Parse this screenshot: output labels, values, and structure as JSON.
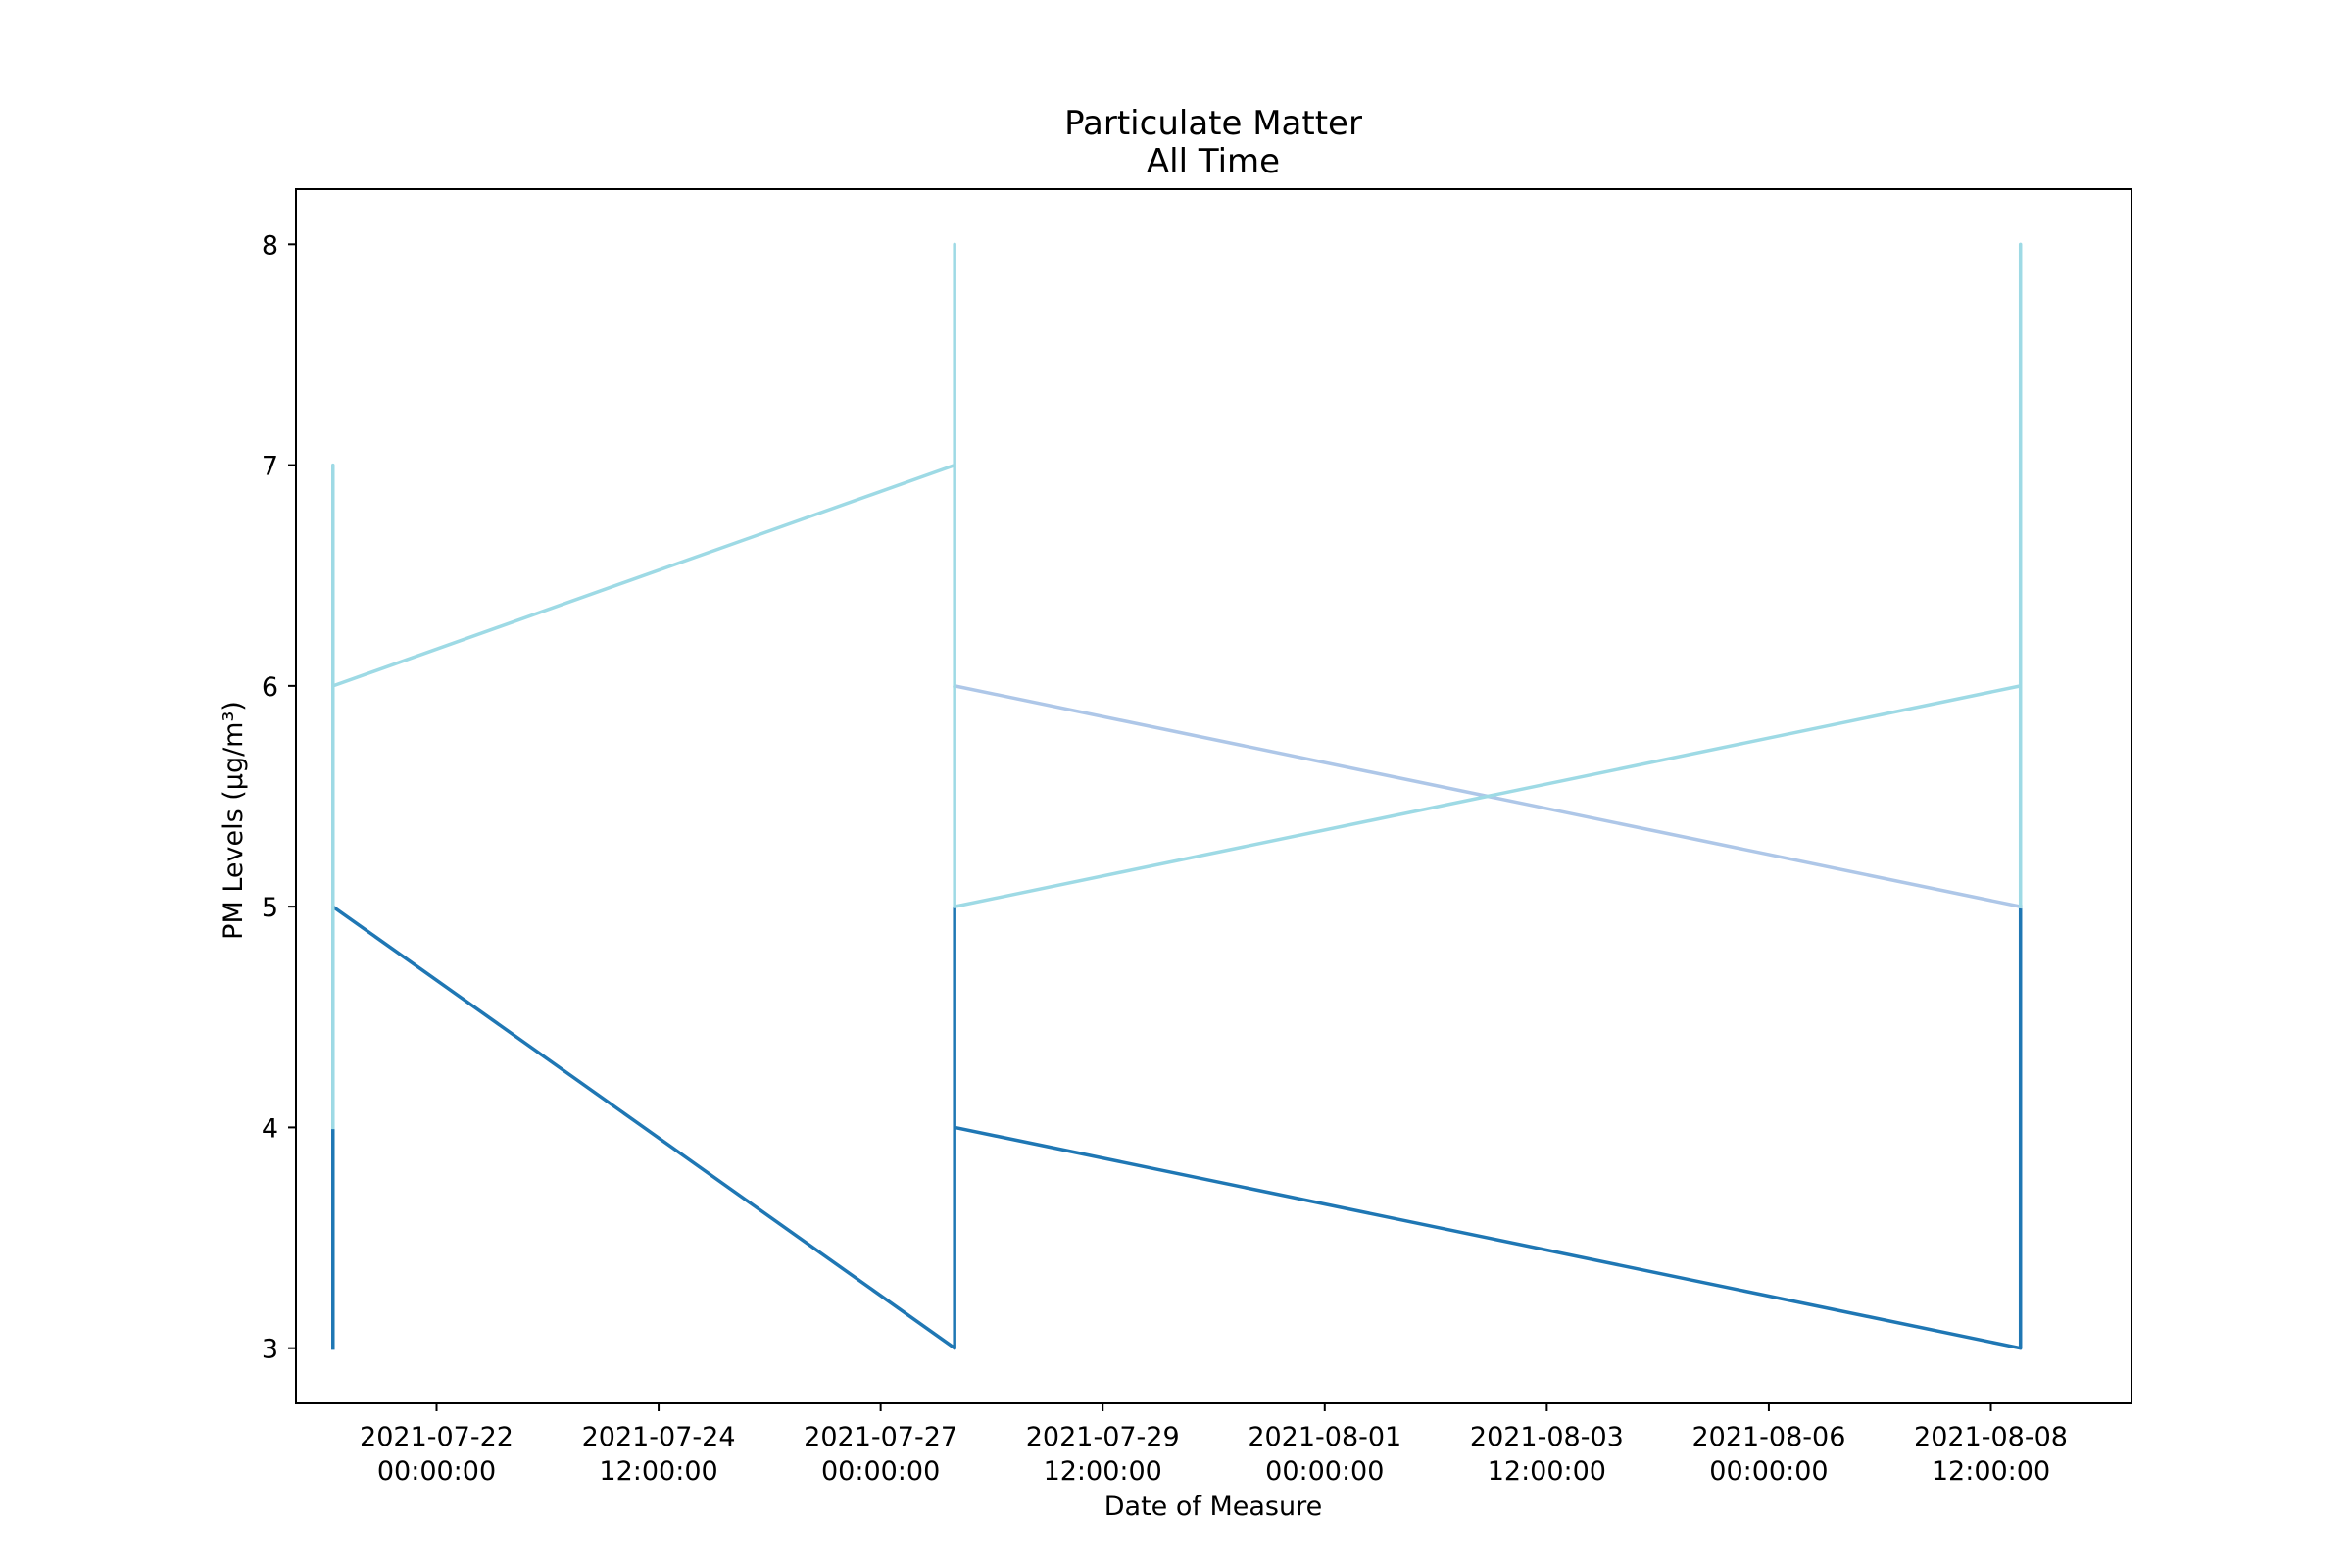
{
  "chart_data": {
    "type": "line",
    "title": "Particulate Matter",
    "subtitle": "All Time",
    "xlabel": "Date of Measure",
    "ylabel": "PM Levels (µg/m³)",
    "x_axis_type": "date",
    "xlim": [
      "2021-07-20 10:00:00",
      "2021-08-10 02:00:00"
    ],
    "ylim": [
      2.75,
      8.25
    ],
    "x_ticks": [
      {
        "value": "2021-07-22 00:00:00",
        "line1": "2021-07-22",
        "line2": "00:00:00"
      },
      {
        "value": "2021-07-24 12:00:00",
        "line1": "2021-07-24",
        "line2": "12:00:00"
      },
      {
        "value": "2021-07-27 00:00:00",
        "line1": "2021-07-27",
        "line2": "00:00:00"
      },
      {
        "value": "2021-07-29 12:00:00",
        "line1": "2021-07-29",
        "line2": "12:00:00"
      },
      {
        "value": "2021-08-01 00:00:00",
        "line1": "2021-08-01",
        "line2": "00:00:00"
      },
      {
        "value": "2021-08-03 12:00:00",
        "line1": "2021-08-03",
        "line2": "12:00:00"
      },
      {
        "value": "2021-08-06 00:00:00",
        "line1": "2021-08-06",
        "line2": "00:00:00"
      },
      {
        "value": "2021-08-08 12:00:00",
        "line1": "2021-08-08",
        "line2": "12:00:00"
      }
    ],
    "y_ticks": [
      3,
      4,
      5,
      6,
      7,
      8
    ],
    "grid": false,
    "legend": "none",
    "series": [
      {
        "color": "#1f77b4",
        "points": [
          {
            "x": "2021-07-20 20:00:00",
            "y": 3
          },
          {
            "x": "2021-07-20 20:00:00",
            "y": 4
          },
          {
            "x": "2021-07-20 20:00:00",
            "y": 5
          },
          {
            "x": "2021-07-27 20:00:00",
            "y": 3
          },
          {
            "x": "2021-07-27 20:00:00",
            "y": 5
          },
          {
            "x": "2021-07-27 20:00:00",
            "y": 4
          },
          {
            "x": "2021-08-08 20:00:00",
            "y": 3
          },
          {
            "x": "2021-08-08 20:00:00",
            "y": 5
          }
        ]
      },
      {
        "color": "#aec7e8",
        "points": [
          {
            "x": "2021-07-27 20:00:00",
            "y": 6
          },
          {
            "x": "2021-08-08 20:00:00",
            "y": 5
          }
        ]
      },
      {
        "color": "#9edae5",
        "points": [
          {
            "x": "2021-07-20 20:00:00",
            "y": 4
          },
          {
            "x": "2021-07-20 20:00:00",
            "y": 7
          },
          {
            "x": "2021-07-20 20:00:00",
            "y": 6
          },
          {
            "x": "2021-07-27 20:00:00",
            "y": 7
          },
          {
            "x": "2021-07-27 20:00:00",
            "y": 8
          },
          {
            "x": "2021-07-27 20:00:00",
            "y": 5
          },
          {
            "x": "2021-08-08 20:00:00",
            "y": 6
          },
          {
            "x": "2021-08-08 20:00:00",
            "y": 8
          },
          {
            "x": "2021-08-08 20:00:00",
            "y": 5
          }
        ]
      }
    ]
  }
}
